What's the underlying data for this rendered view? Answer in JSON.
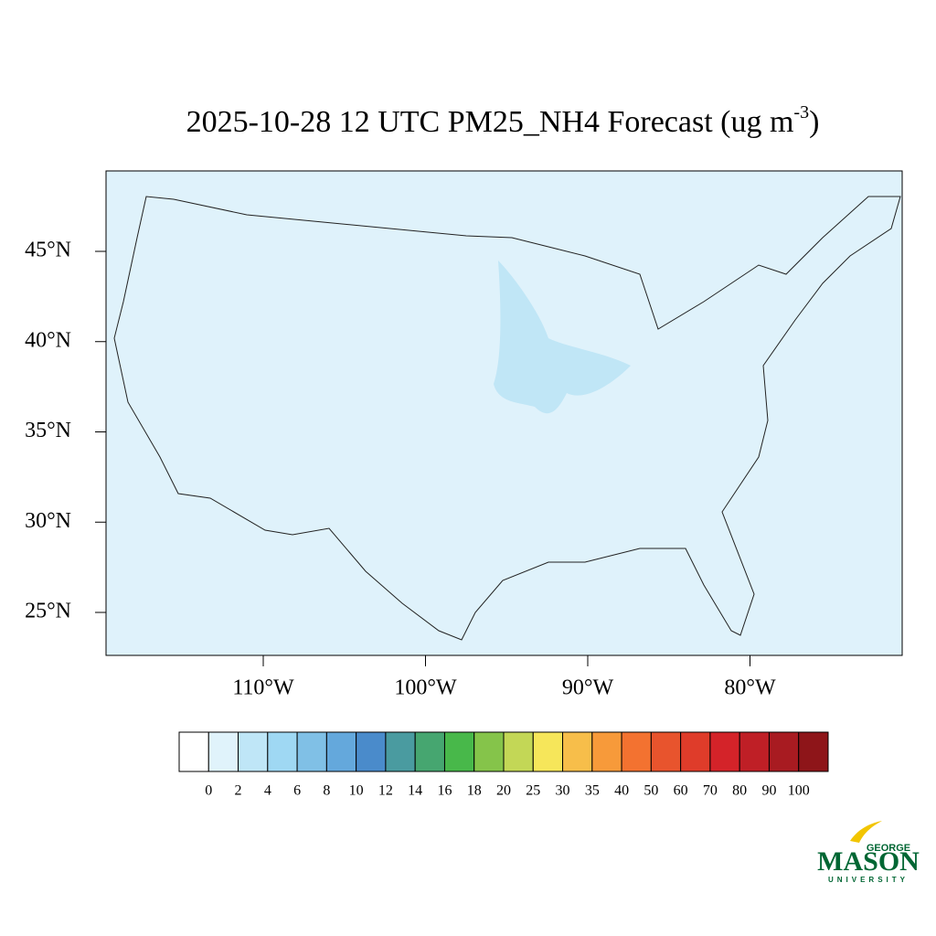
{
  "title": {
    "main": "2025-10-28 12 UTC PM25_NH4 Forecast (ug m",
    "sup": "-3",
    "end": ")"
  },
  "map": {
    "lat_ticks": [
      {
        "value": 45,
        "label": "45°N"
      },
      {
        "value": 40,
        "label": "40°N"
      },
      {
        "value": 35,
        "label": "35°N"
      },
      {
        "value": 30,
        "label": "30°N"
      },
      {
        "value": 25,
        "label": "25°N"
      }
    ],
    "lon_ticks": [
      {
        "value": -110,
        "label": "110°W"
      },
      {
        "value": -100,
        "label": "100°W"
      },
      {
        "value": -90,
        "label": "90°W"
      },
      {
        "value": -80,
        "label": "80°W"
      }
    ]
  },
  "colorbar": {
    "levels": [
      0,
      2,
      4,
      6,
      8,
      10,
      12,
      14,
      16,
      18,
      20,
      25,
      30,
      35,
      40,
      50,
      60,
      70,
      80,
      90,
      100
    ],
    "colors": [
      "#ffffff",
      "#e0f3fb",
      "#bfe6f7",
      "#9fd8f3",
      "#80c0e6",
      "#64a8dc",
      "#4a8bcb",
      "#4a9ba0",
      "#46a670",
      "#48b84a",
      "#85c44a",
      "#c3d756",
      "#f6e65a",
      "#f7be4a",
      "#f79a3a",
      "#f37230",
      "#e8542d",
      "#df3c2a",
      "#d42329",
      "#bf1f26",
      "#a81b21",
      "#8e1519"
    ]
  },
  "logo": {
    "top": "GEORGE",
    "main": "MASON",
    "bottom": "UNIVERSITY"
  }
}
